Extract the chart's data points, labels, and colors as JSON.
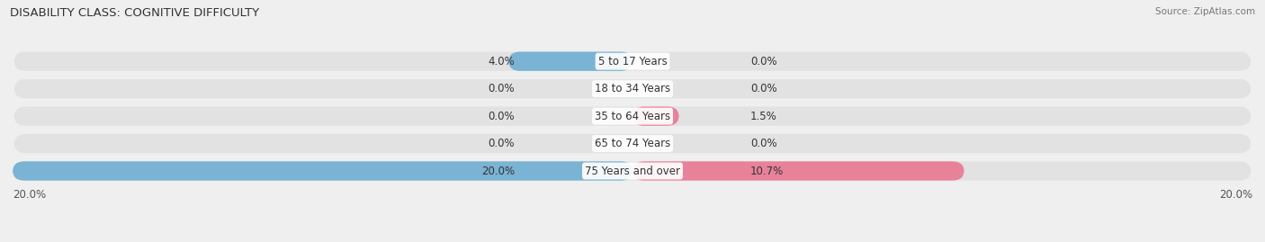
{
  "title": "DISABILITY CLASS: COGNITIVE DIFFICULTY",
  "source": "Source: ZipAtlas.com",
  "categories": [
    "5 to 17 Years",
    "18 to 34 Years",
    "35 to 64 Years",
    "65 to 74 Years",
    "75 Years and over"
  ],
  "male_values": [
    4.0,
    0.0,
    0.0,
    0.0,
    20.0
  ],
  "female_values": [
    0.0,
    0.0,
    1.5,
    0.0,
    10.7
  ],
  "max_val": 20.0,
  "male_color": "#7ab3d4",
  "female_color": "#e8829a",
  "bg_color": "#efefef",
  "bar_bg_color": "#e2e2e2",
  "row_bg_light": "#f5f5f5",
  "title_fontsize": 9.5,
  "label_fontsize": 8.5,
  "value_fontsize": 8.5,
  "source_fontsize": 7.5
}
